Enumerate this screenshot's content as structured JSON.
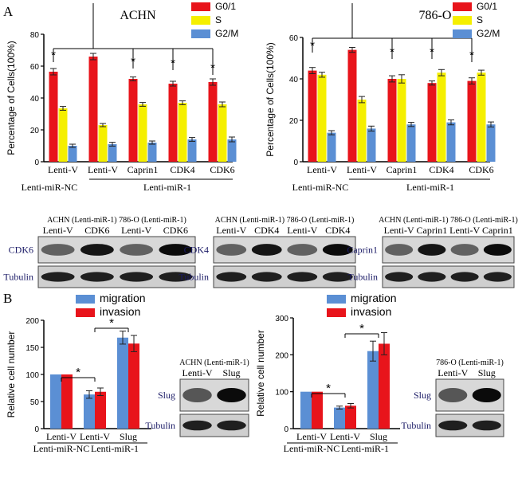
{
  "panel_labels": {
    "a": "A",
    "b": "B"
  },
  "legend_a": {
    "g01": "G0/1",
    "s": "S",
    "g2m": "G2/M"
  },
  "legend_b": {
    "migration": "migration",
    "invasion": "invasion"
  },
  "colors": {
    "g01": "#e8141b",
    "s": "#f5ef00",
    "g2m": "#5b8fd4",
    "migration": "#5b8fd4",
    "invasion": "#e8141b"
  },
  "star": "*",
  "group_labels_a": {
    "nc": "Lenti-miR-NC",
    "mir1": "Lenti-miR-1"
  },
  "group_labels_b": {
    "nc": "Lenti-miR-NC",
    "mir1": "Lenti-miR-1"
  },
  "blots_a": [
    {
      "header": "ACHN (Lenti-miR-1) 786-O (Lenti-miR-1)",
      "lanes": [
        "Lenti-V",
        "CDK6",
        "Lenti-V",
        "CDK6"
      ],
      "target": "CDK6",
      "loading": "Tubulin"
    },
    {
      "header": "ACHN (Lenti-miR-1) 786-O (Lenti-miR-1)",
      "lanes": [
        "Lenti-V",
        "CDK4",
        "Lenti-V",
        "CDK4"
      ],
      "target": "CDK4",
      "loading": "Tubulin"
    },
    {
      "header": "ACHN (Lenti-miR-1) 786-O (Lenti-miR-1)",
      "lanes": [
        "Lenti-V",
        "Caprin1",
        "Lenti-V",
        "Caprin1"
      ],
      "target": "Caprin1",
      "loading": "Tubulin"
    }
  ],
  "blots_b": [
    {
      "header": "ACHN (Lenti-miR-1)",
      "lanes": [
        "Lenti-V",
        "Slug"
      ],
      "target": "Slug",
      "loading": "Tubulin"
    },
    {
      "header": "786-O (Lenti-miR-1)",
      "lanes": [
        "Lenti-V",
        "Slug"
      ],
      "target": "Slug",
      "loading": "Tubulin"
    }
  ],
  "chart_data": [
    {
      "type": "bar",
      "title": "ACHN",
      "ylabel": "Percentage of Cells(100%)",
      "ylim": [
        0,
        80
      ],
      "yticks": [
        0,
        20,
        40,
        60,
        80
      ],
      "categories": [
        "Lenti-V",
        "Lenti-V",
        "Caprin1",
        "CDK4",
        "CDK6"
      ],
      "series": [
        {
          "name": "G0/1",
          "values": [
            56.5,
            66,
            52,
            49,
            50
          ],
          "errors": [
            2,
            2,
            1.2,
            1.5,
            2
          ]
        },
        {
          "name": "S",
          "values": [
            33.5,
            23,
            36,
            37,
            36
          ],
          "errors": [
            1.2,
            1,
            1.2,
            1.2,
            1.5
          ]
        },
        {
          "name": "G2/M",
          "values": [
            10,
            11,
            12,
            14,
            14
          ],
          "errors": [
            1,
            1.2,
            1,
            1.2,
            1.5
          ]
        }
      ]
    },
    {
      "type": "bar",
      "title": "786-O",
      "ylabel": "Percentage of Cells(100%)",
      "ylim": [
        0,
        60
      ],
      "yticks": [
        0,
        20,
        40,
        60
      ],
      "categories": [
        "Lenti-V",
        "Lenti-V",
        "Caprin1",
        "CDK4",
        "CDK6"
      ],
      "series": [
        {
          "name": "G0/1",
          "values": [
            44,
            54,
            40,
            38,
            39
          ],
          "errors": [
            1.5,
            1.2,
            1.5,
            1,
            1.5
          ]
        },
        {
          "name": "S",
          "values": [
            42,
            30,
            40,
            43,
            43
          ],
          "errors": [
            1.2,
            1.5,
            2,
            1.5,
            1.2
          ]
        },
        {
          "name": "G2/M",
          "values": [
            14,
            16,
            18,
            19,
            18
          ],
          "errors": [
            1,
            1.2,
            1,
            1.2,
            1.2
          ]
        }
      ]
    },
    {
      "type": "bar",
      "title": "",
      "ylabel": "Relative cell number",
      "ylim": [
        0,
        200
      ],
      "yticks": [
        0,
        50,
        100,
        150,
        200
      ],
      "categories": [
        "Lenti-V",
        "Lenti-V",
        "Slug"
      ],
      "series": [
        {
          "name": "migration",
          "values": [
            100,
            63,
            168
          ],
          "errors": [
            0,
            7,
            12
          ]
        },
        {
          "name": "invasion",
          "values": [
            100,
            68,
            157
          ],
          "errors": [
            0,
            7,
            15
          ]
        }
      ]
    },
    {
      "type": "bar",
      "title": "",
      "ylabel": "Relative cell number",
      "ylim": [
        0,
        300
      ],
      "yticks": [
        0,
        100,
        200,
        300
      ],
      "categories": [
        "Lenti-V",
        "Lenti-V",
        "Slug"
      ],
      "series": [
        {
          "name": "migration",
          "values": [
            100,
            57,
            210
          ],
          "errors": [
            0,
            4,
            27
          ]
        },
        {
          "name": "invasion",
          "values": [
            100,
            62,
            230
          ],
          "errors": [
            0,
            6,
            30
          ]
        }
      ]
    }
  ]
}
